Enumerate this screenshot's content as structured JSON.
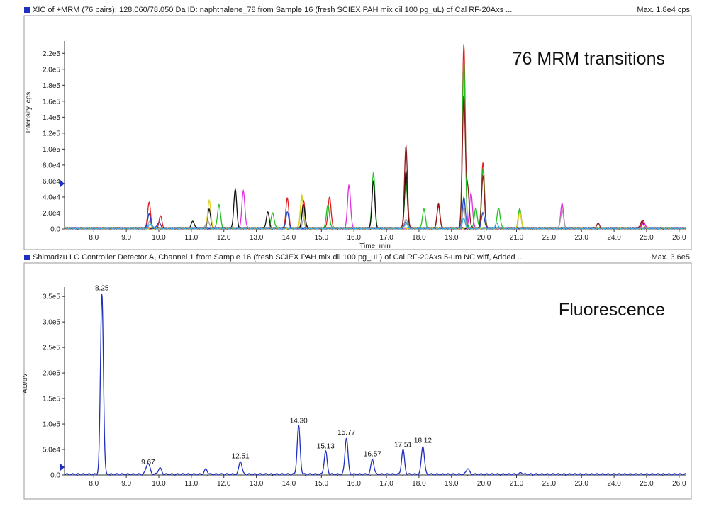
{
  "panels": [
    {
      "id": "top",
      "title": "XIC of +MRM (76 pairs): 128.060/78.050 Da ID: naphthalene_78 from Sample 16 (fresh SCIEX PAH mix dil 100 pg_uL) of Cal RF-20Axs ...",
      "max_label": "Max. 1.8e4 cps",
      "annotation": "76 MRM transitions"
    },
    {
      "id": "bottom",
      "title": "Shimadzu LC Controller Detector A, Channel 1 from Sample 16 (fresh SCIEX PAH mix dil 100 pg_uL) of Cal RF-20Axs 5-um NC.wiff, Added ...",
      "max_label": "Max. 3.6e5",
      "annotation": "Fluorescence"
    }
  ],
  "chart_data": [
    {
      "type": "line",
      "subtype": "chromatogram-overlay",
      "xlabel": "Time, min",
      "ylabel": "Intensity, cps",
      "xlim": [
        7.1,
        26.2
      ],
      "ylim": [
        0,
        230000
      ],
      "x_ticks": [
        "8.0",
        "9.0",
        "10.0",
        "11.0",
        "12.0",
        "13.0",
        "14.0",
        "15.0",
        "16.0",
        "17.0",
        "18.0",
        "19.0",
        "20.0",
        "21.0",
        "22.0",
        "23.0",
        "24.0",
        "25.0",
        "26.0"
      ],
      "y_ticks": [
        {
          "value": 0,
          "label": "0.0"
        },
        {
          "value": 20000,
          "label": "2.0e4"
        },
        {
          "value": 40000,
          "label": "4.0e4"
        },
        {
          "value": 60000,
          "label": "6.0e4"
        },
        {
          "value": 80000,
          "label": "8.0e4"
        },
        {
          "value": 100000,
          "label": "1.0e5"
        },
        {
          "value": 120000,
          "label": "1.2e5"
        },
        {
          "value": 140000,
          "label": "1.4e5"
        },
        {
          "value": 160000,
          "label": "1.6e5"
        },
        {
          "value": 180000,
          "label": "1.8e5"
        },
        {
          "value": 200000,
          "label": "2.0e5"
        },
        {
          "value": 220000,
          "label": "2.2e5"
        }
      ],
      "grid": false,
      "series": [
        {
          "color": "#e02020",
          "peaks": [
            [
              9.7,
              32000
            ],
            [
              10.05,
              15000
            ],
            [
              13.95,
              37000
            ],
            [
              14.45,
              34000
            ],
            [
              15.25,
              40000
            ],
            [
              17.6,
              60000
            ],
            [
              18.6,
              28000
            ],
            [
              19.38,
              230000
            ],
            [
              19.97,
              83000
            ],
            [
              21.1,
              22000
            ],
            [
              24.9,
              10000
            ]
          ]
        },
        {
          "color": "#22c022",
          "peaks": [
            [
              11.85,
              30000
            ],
            [
              13.5,
              20000
            ],
            [
              14.4,
              40000
            ],
            [
              15.2,
              30000
            ],
            [
              16.6,
              70000
            ],
            [
              17.6,
              58000
            ],
            [
              18.15,
              24000
            ],
            [
              19.38,
              210000
            ],
            [
              19.75,
              25000
            ],
            [
              19.97,
              75000
            ],
            [
              20.45,
              26000
            ],
            [
              21.1,
              24000
            ]
          ]
        },
        {
          "color": "#e030e0",
          "peaks": [
            [
              12.6,
              47000
            ],
            [
              15.85,
              55000
            ],
            [
              19.6,
              45000
            ],
            [
              22.4,
              30000
            ],
            [
              24.9,
              7000
            ]
          ]
        },
        {
          "color": "#111111",
          "peaks": [
            [
              11.05,
              9000
            ],
            [
              11.55,
              24000
            ],
            [
              12.35,
              48000
            ],
            [
              13.35,
              20000
            ],
            [
              14.45,
              30000
            ],
            [
              16.6,
              58000
            ],
            [
              17.6,
              70000
            ]
          ]
        },
        {
          "color": "#8b1a1a",
          "peaks": [
            [
              17.6,
              102000
            ],
            [
              18.6,
              30000
            ],
            [
              19.38,
              165000
            ],
            [
              19.5,
              50000
            ],
            [
              19.97,
              65000
            ],
            [
              23.5,
              6000
            ],
            [
              24.85,
              9000
            ]
          ]
        },
        {
          "color": "#e0d020",
          "peaks": [
            [
              11.55,
              36000
            ],
            [
              14.4,
              42000
            ],
            [
              21.1,
              20000
            ]
          ]
        },
        {
          "color": "#2240c8",
          "peaks": [
            [
              9.7,
              18000
            ],
            [
              10.0,
              8000
            ],
            [
              13.95,
              20000
            ],
            [
              17.6,
              8000
            ],
            [
              19.38,
              38000
            ],
            [
              19.97,
              20000
            ]
          ]
        },
        {
          "color": "#a0a0a0",
          "peaks": [
            [
              9.72,
              8000
            ],
            [
              11.5,
              10000
            ],
            [
              14.45,
              10000
            ],
            [
              17.6,
              12000
            ],
            [
              19.38,
              25000
            ],
            [
              22.4,
              22000
            ]
          ]
        },
        {
          "color": "#30b0e0",
          "peaks": [
            [
              9.75,
              6000
            ],
            [
              17.6,
              6000
            ],
            [
              19.38,
              12000
            ],
            [
              20.4,
              6000
            ]
          ]
        }
      ]
    },
    {
      "type": "line",
      "subtype": "chromatogram",
      "xlabel": "",
      "ylabel": "AU/uV",
      "xlim": [
        7.1,
        26.2
      ],
      "ylim": [
        0,
        360000
      ],
      "x_ticks": [
        "8.0",
        "9.0",
        "10.0",
        "11.0",
        "12.0",
        "13.0",
        "14.0",
        "15.0",
        "16.0",
        "17.0",
        "18.0",
        "19.0",
        "20.0",
        "21.0",
        "22.0",
        "23.0",
        "24.0",
        "25.0",
        "26.0"
      ],
      "y_ticks": [
        {
          "value": 0,
          "label": "0.0"
        },
        {
          "value": 50000,
          "label": "5.0e4"
        },
        {
          "value": 100000,
          "label": "1.0e5"
        },
        {
          "value": 150000,
          "label": "1.5e5"
        },
        {
          "value": 200000,
          "label": "2.0e5"
        },
        {
          "value": 250000,
          "label": "2.5e5"
        },
        {
          "value": 300000,
          "label": "3.0e5"
        },
        {
          "value": 350000,
          "label": "3.5e5"
        }
      ],
      "grid": false,
      "series": [
        {
          "color": "#1f2fbf",
          "peaks": [
            [
              8.25,
              355000
            ],
            [
              9.62,
              8000
            ],
            [
              9.67,
              14000
            ],
            [
              9.72,
              6000
            ],
            [
              10.0,
              6000
            ],
            [
              10.05,
              8000
            ],
            [
              11.45,
              10000
            ],
            [
              12.51,
              26000
            ],
            [
              14.3,
              95000
            ],
            [
              15.13,
              45000
            ],
            [
              15.77,
              72000
            ],
            [
              16.57,
              30000
            ],
            [
              17.51,
              48000
            ],
            [
              18.12,
              56000
            ],
            [
              19.5,
              12000
            ],
            [
              21.15,
              3000
            ]
          ]
        }
      ],
      "peak_labels": [
        {
          "x": 8.25,
          "y": 355000,
          "label": "8.25"
        },
        {
          "x": 9.67,
          "y": 14000,
          "label": "9.67"
        },
        {
          "x": 12.51,
          "y": 26000,
          "label": "12.51"
        },
        {
          "x": 14.3,
          "y": 95000,
          "label": "14.30"
        },
        {
          "x": 15.13,
          "y": 45000,
          "label": "15.13"
        },
        {
          "x": 15.77,
          "y": 72000,
          "label": "15.77"
        },
        {
          "x": 16.57,
          "y": 30000,
          "label": "16.57"
        },
        {
          "x": 17.51,
          "y": 48000,
          "label": "17.51"
        },
        {
          "x": 18.12,
          "y": 56000,
          "label": "18.12"
        }
      ]
    }
  ]
}
